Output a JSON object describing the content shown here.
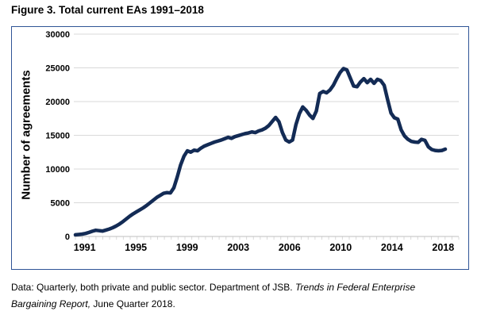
{
  "title": "Figure 3. Total current EAs 1991–2018",
  "caption": {
    "line1_normal": "Data: Quarterly, both private and public sector. Department of JSB. ",
    "line1_italic": "Trends in Federal Enterprise",
    "line2_italic": "Bargaining Report,",
    "line2_normal": " June Quarter 2018."
  },
  "colors": {
    "line": "#132b55",
    "frame_border": "#2f5496",
    "gridline": "#d9d9d9",
    "axis_line": "#bfbfbf",
    "text": "#000000"
  },
  "chart_data": {
    "type": "line",
    "title": "Figure 3. Total current EAs 1991–2018",
    "xlabel": "",
    "ylabel": "Number of agreements",
    "ylim": [
      0,
      30000
    ],
    "ytick_interval": 5000,
    "yticks": [
      0,
      5000,
      10000,
      15000,
      20000,
      25000,
      30000
    ],
    "xtick_labels": [
      "1991",
      "1995",
      "1999",
      "2003",
      "2006",
      "2010",
      "2014",
      "2018"
    ],
    "grid": "horizontal",
    "legend": "none",
    "frequency": "quarterly",
    "x_start": "1991 Q1",
    "x_end": "2018 Q2",
    "series": [
      {
        "name": "Total current EAs",
        "values": [
          250,
          300,
          350,
          450,
          600,
          780,
          920,
          860,
          800,
          950,
          1100,
          1300,
          1550,
          1850,
          2200,
          2600,
          3000,
          3350,
          3650,
          3950,
          4250,
          4600,
          5000,
          5400,
          5800,
          6100,
          6400,
          6500,
          6450,
          7200,
          8800,
          10600,
          11900,
          12700,
          12500,
          12800,
          12700,
          13100,
          13400,
          13600,
          13800,
          14000,
          14150,
          14300,
          14500,
          14700,
          14550,
          14800,
          14950,
          15100,
          15250,
          15350,
          15500,
          15400,
          15650,
          15800,
          16050,
          16450,
          17050,
          17650,
          17000,
          15400,
          14300,
          14000,
          14300,
          16600,
          18200,
          19200,
          18700,
          18000,
          17500,
          18600,
          21200,
          21500,
          21300,
          21700,
          22400,
          23400,
          24300,
          24900,
          24700,
          23500,
          22300,
          22200,
          22900,
          23400,
          22800,
          23300,
          22700,
          23300,
          23100,
          22400,
          20300,
          18300,
          17600,
          17400,
          15800,
          14900,
          14400,
          14100,
          14000,
          13950,
          14400,
          14250,
          13300,
          12900,
          12750,
          12700,
          12750,
          12950
        ]
      }
    ]
  }
}
